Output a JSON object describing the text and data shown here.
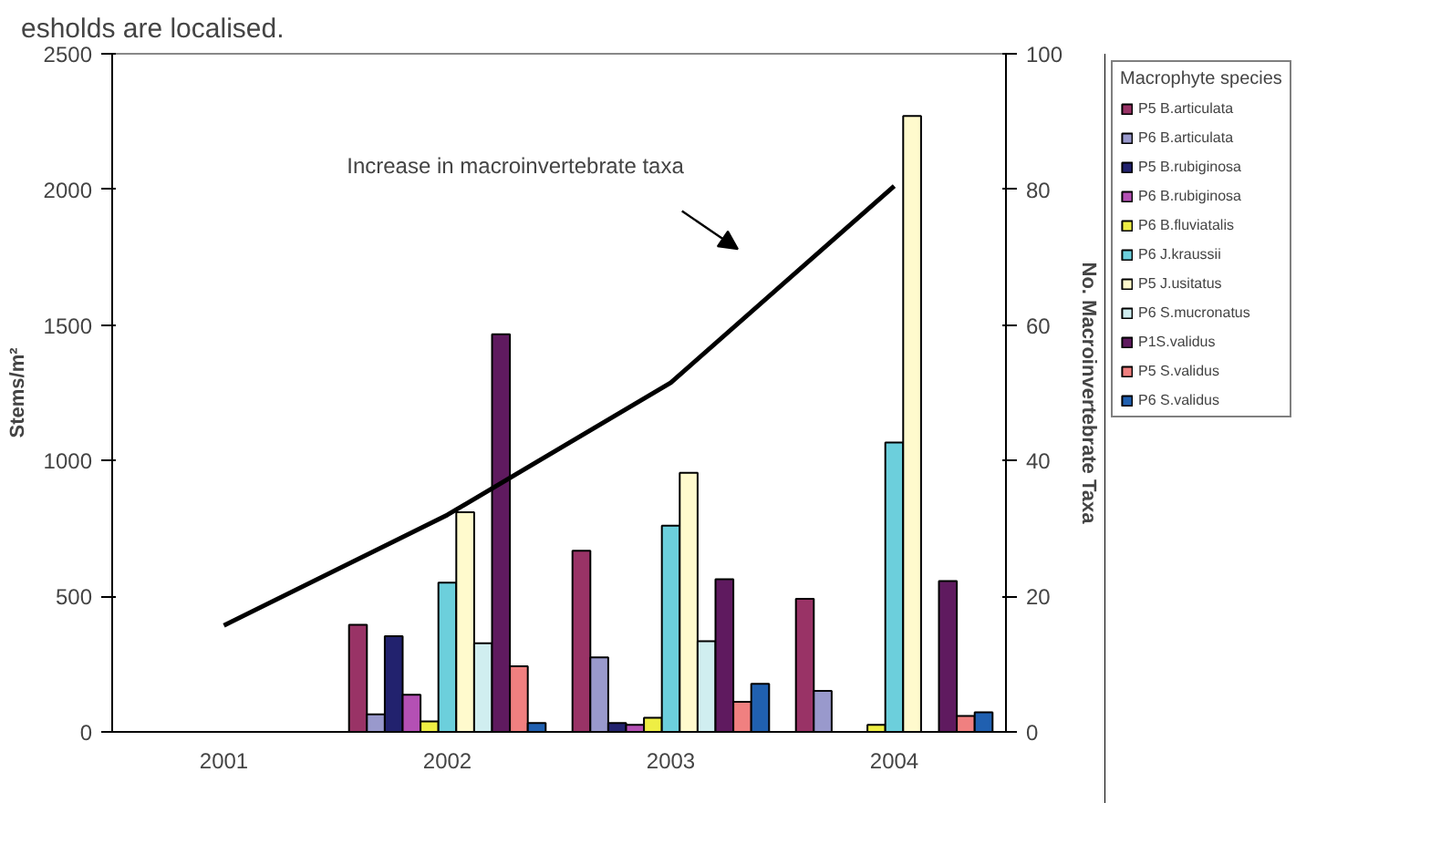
{
  "chart_data": {
    "type": "bar",
    "annotations": [
      "esholds are localised.",
      "Increase in macroinvertebrate taxa"
    ],
    "ylabel": "Stems/m²",
    "y2label": "No. Macroinvertebrate Taxa",
    "legend_title": "Macrophyte species",
    "categories": [
      "2001",
      "2002",
      "2003",
      "2004"
    ],
    "series": [
      {
        "name": "P5 B.articulata",
        "color": "#993366",
        "values": [
          null,
          395,
          668,
          491
        ]
      },
      {
        "name": "P6 B.articulata",
        "color": "#9999cc",
        "values": [
          null,
          65,
          275,
          151
        ]
      },
      {
        "name": "P5 B.rubiginosa",
        "color": "#22226e",
        "values": [
          null,
          353,
          33,
          null
        ]
      },
      {
        "name": "P6 B.rubiginosa",
        "color": "#b450b4",
        "values": [
          null,
          137,
          26,
          null
        ]
      },
      {
        "name": "P6 B.fluviatalis",
        "color": "#eeee44",
        "values": [
          null,
          39,
          52,
          26
        ]
      },
      {
        "name": "P6 J.kraussii",
        "color": "#6ccfdc",
        "values": [
          null,
          550,
          760,
          1067
        ]
      },
      {
        "name": "P5 J.usitatus",
        "color": "#fffacd",
        "values": [
          null,
          810,
          955,
          2271
        ]
      },
      {
        "name": "P6 S.mucronatus",
        "color": "#d0eef0",
        "values": [
          null,
          327,
          334,
          null
        ]
      },
      {
        "name": "P1S.validus",
        "color": "#5f1a5f",
        "values": [
          null,
          1466,
          563,
          556
        ]
      },
      {
        "name": "P5 S.validus",
        "color": "#f08080",
        "values": [
          null,
          242,
          111,
          59
        ]
      },
      {
        "name": "P6 S.validus",
        "color": "#2060b0",
        "values": [
          null,
          33,
          177,
          72
        ]
      },
      {
        "type": "line",
        "axis": "y2",
        "color": "#000000",
        "values": [
          15.7,
          32,
          51.5,
          80.5
        ]
      }
    ],
    "ylim": [
      0,
      2500
    ],
    "yticks": [
      0,
      500,
      1000,
      1500,
      2000,
      2500
    ],
    "y2lim": [
      0,
      100
    ],
    "y2ticks": [
      0,
      20,
      40,
      60,
      80,
      100
    ],
    "grid": false,
    "legend": "right"
  }
}
